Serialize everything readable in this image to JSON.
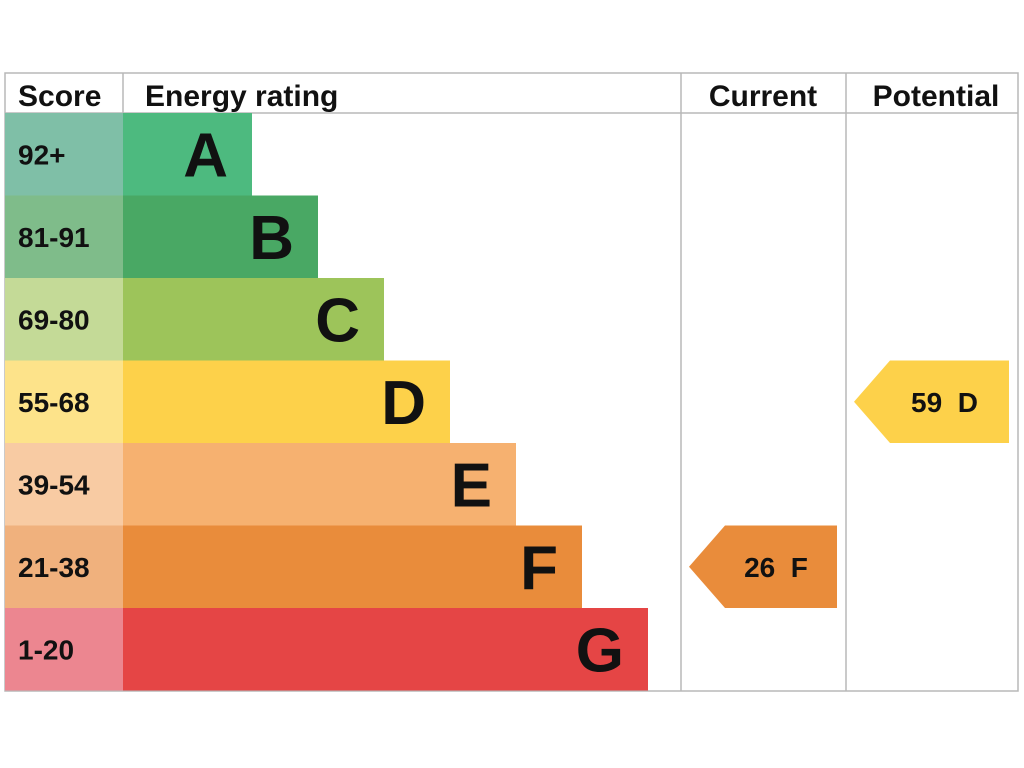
{
  "chart_data": {
    "type": "bar",
    "title": "",
    "headers": {
      "score": "Score",
      "rating": "Energy rating",
      "current": "Current",
      "potential": "Potential"
    },
    "bands": [
      {
        "letter": "A",
        "range": "92+",
        "color": "#4dba7f",
        "score_color": "#7fbfa7"
      },
      {
        "letter": "B",
        "range": "81-91",
        "color": "#49a864",
        "score_color": "#7fbc8a"
      },
      {
        "letter": "C",
        "range": "69-80",
        "color": "#9dc45a",
        "score_color": "#c4da97"
      },
      {
        "letter": "D",
        "range": "55-68",
        "color": "#fdd14a",
        "score_color": "#fde38a"
      },
      {
        "letter": "E",
        "range": "39-54",
        "color": "#f6b170",
        "score_color": "#f8cba3"
      },
      {
        "letter": "F",
        "range": "21-38",
        "color": "#e98c3b",
        "score_color": "#f0b17d"
      },
      {
        "letter": "G",
        "range": "1-20",
        "color": "#e54545",
        "score_color": "#ec8690"
      }
    ],
    "current": {
      "value": 26,
      "band": "F",
      "label": "26  F",
      "color": "#e98c3b"
    },
    "potential": {
      "value": 59,
      "band": "D",
      "label": "59  D",
      "color": "#fdd14a"
    }
  }
}
